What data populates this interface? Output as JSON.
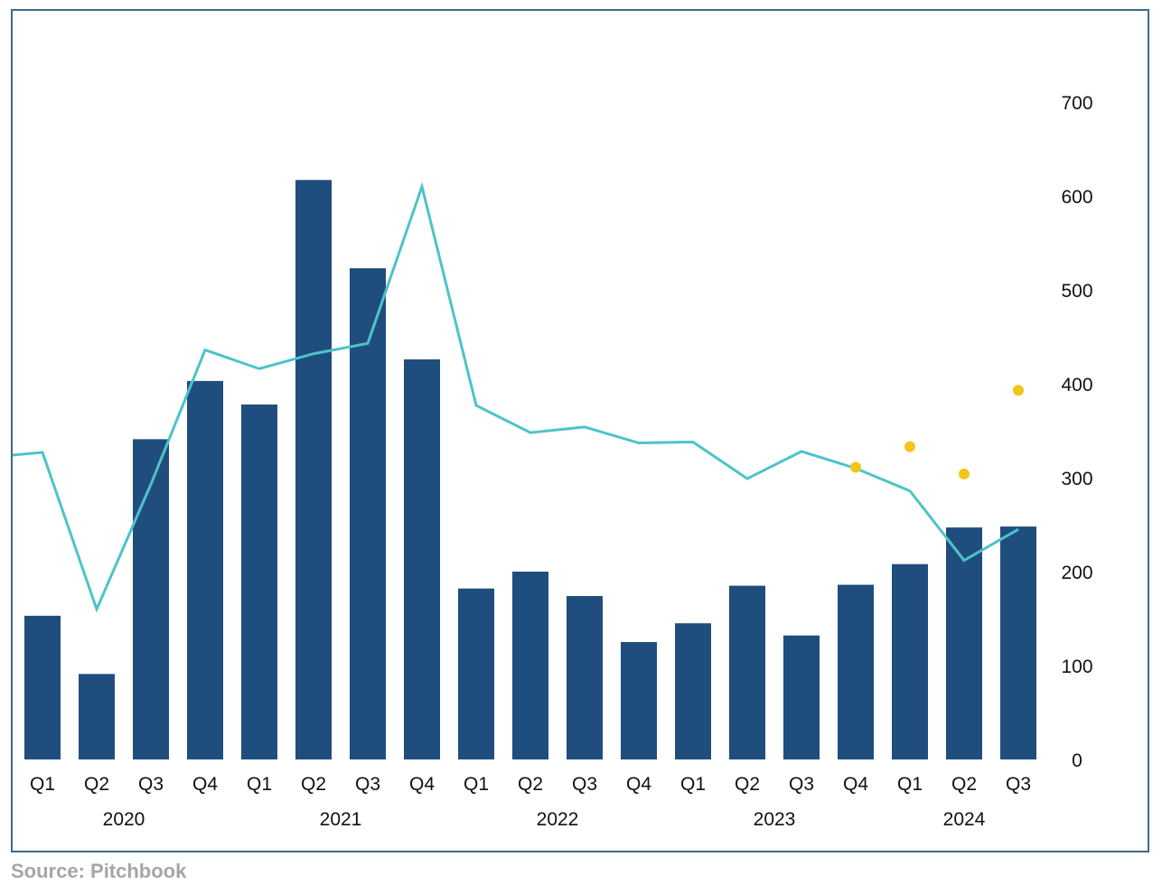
{
  "source_note": "Source: Pitchbook",
  "colors": {
    "bar": "#1f4e7e",
    "line": "#4dc3c9",
    "dot": "#f2c519",
    "frame": "#3d6a8a"
  },
  "chart_data": {
    "type": "bar",
    "categories": [
      "Q1",
      "Q2",
      "Q3",
      "Q4",
      "Q1",
      "Q2",
      "Q3",
      "Q4",
      "Q1",
      "Q2",
      "Q3",
      "Q4",
      "Q1",
      "Q2",
      "Q3",
      "Q4",
      "Q1",
      "Q2",
      "Q3"
    ],
    "year_labels": [
      {
        "label": "2020",
        "start": 0,
        "end": 3
      },
      {
        "label": "2021",
        "start": 4,
        "end": 7
      },
      {
        "label": "2022",
        "start": 8,
        "end": 11
      },
      {
        "label": "2023",
        "start": 12,
        "end": 15
      },
      {
        "label": "2024",
        "start": 16,
        "end": 18
      }
    ],
    "series": [
      {
        "type": "bar",
        "values": [
          153,
          91,
          341,
          403,
          378,
          617,
          523,
          426,
          182,
          200,
          174,
          125,
          145,
          185,
          132,
          186,
          208,
          247,
          248
        ]
      },
      {
        "type": "line",
        "values": [
          327,
          160,
          293,
          436,
          416,
          432,
          443,
          610,
          377,
          348,
          354,
          337,
          338,
          299,
          328,
          310,
          286,
          212,
          245
        ],
        "line_start_value": 324
      },
      {
        "type": "scatter",
        "points": [
          {
            "index": 15,
            "value": 311
          },
          {
            "index": 16,
            "value": 333
          },
          {
            "index": 17,
            "value": 304
          },
          {
            "index": 18,
            "value": 393
          }
        ]
      }
    ],
    "y_axis": {
      "position": "right",
      "ticks": [
        "0",
        "100",
        "200",
        "300",
        "400",
        "500",
        "600",
        "700"
      ],
      "ylim": [
        0,
        700
      ]
    }
  }
}
